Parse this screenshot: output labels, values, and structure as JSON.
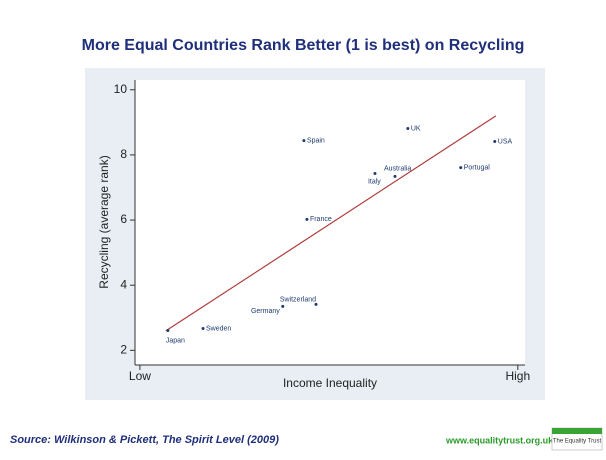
{
  "chart_data": {
    "type": "scatter",
    "title": "More Equal Countries Rank Better (1 is best) on Recycling",
    "x_label": "Income Inequality",
    "y_label": "Recycling (average rank)",
    "xlim": [
      -1.3,
      101.9
    ],
    "xticks": [
      {
        "value": 0,
        "label": "Low"
      },
      {
        "value": 100,
        "label": "High"
      }
    ],
    "ylim": [
      1.55,
      10.3
    ],
    "yticks": [
      2,
      4,
      6,
      8,
      10
    ],
    "grid": false,
    "color": "#1f3b6e",
    "points": {
      "labels": [
        "Japan",
        "Sweden",
        "Germany",
        "Switzerland",
        "Spain",
        "France",
        "Italy",
        "Australia",
        "UK",
        "Portugal",
        "USA"
      ],
      "x": [
        7.4,
        16.7,
        37.8,
        46.6,
        43.4,
        44.2,
        62.2,
        67.5,
        70.9,
        84.9,
        93.9
      ],
      "y": [
        2.61,
        2.67,
        3.35,
        3.41,
        8.44,
        6.02,
        7.43,
        7.34,
        8.81,
        7.61,
        8.41
      ]
    },
    "trend": {
      "color": "#b03a3a",
      "x": [
        6.9,
        94.2
      ],
      "y": [
        2.6,
        9.2
      ]
    },
    "source": "Source: Wilkinson & Pickett, The Spirit Level (2009)",
    "website": "www.equalitytrust.org.uk",
    "logo_text": "The Equality Trust"
  }
}
